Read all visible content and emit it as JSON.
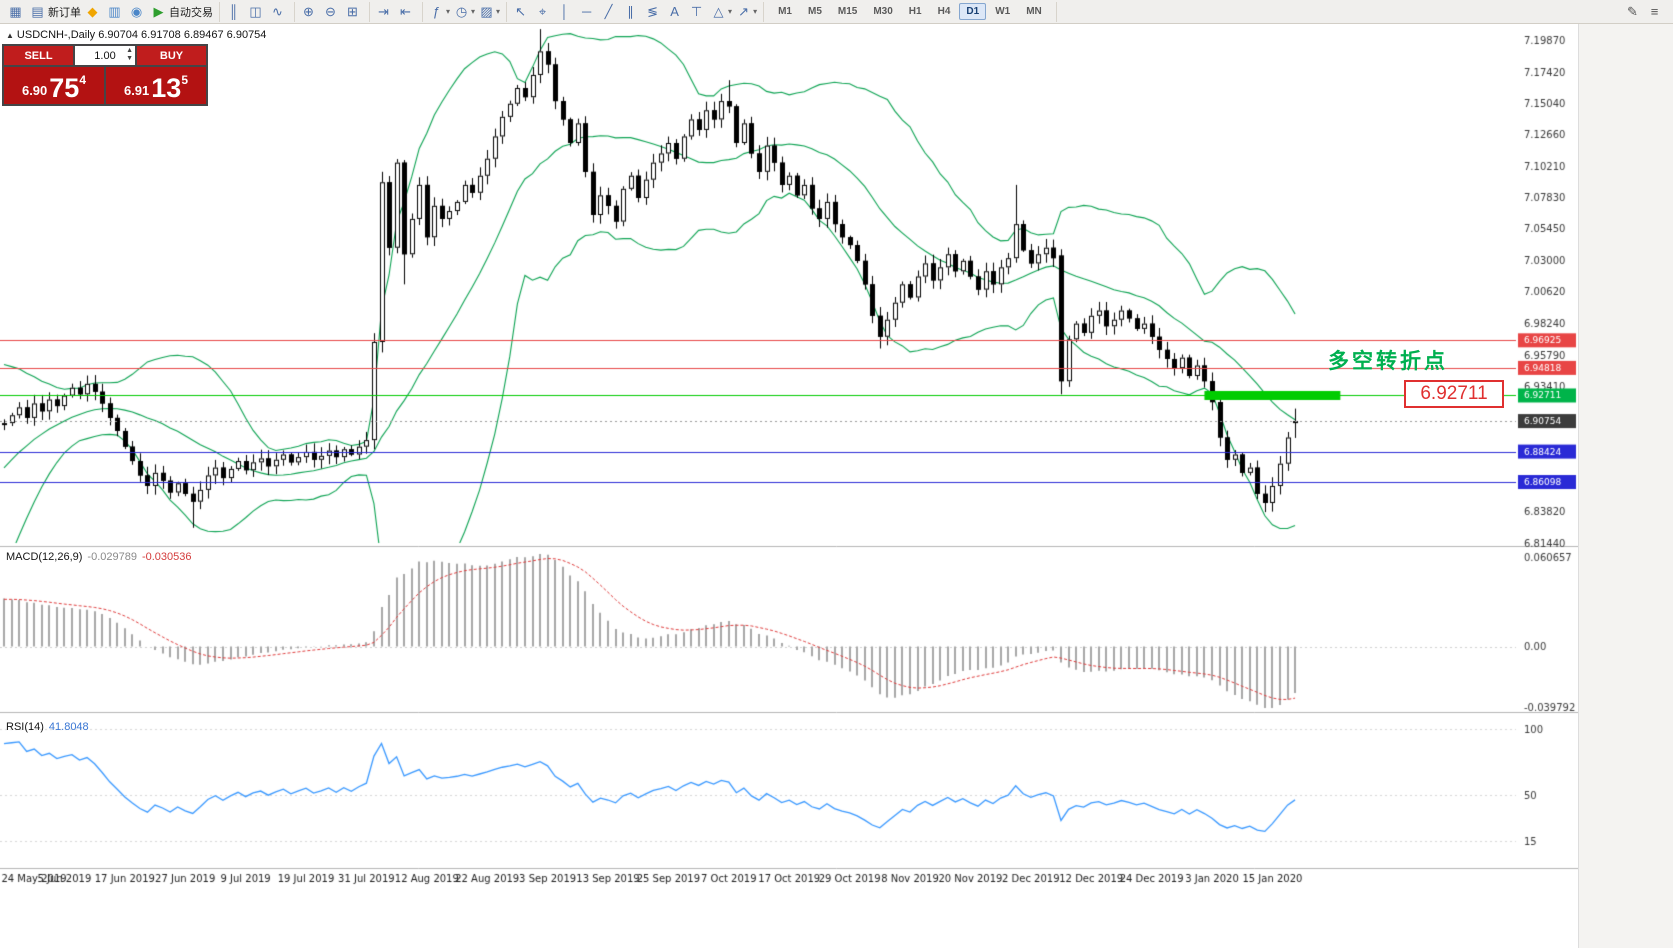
{
  "toolbar": {
    "groups": [
      {
        "name": "trade",
        "items": [
          {
            "name": "app-icon",
            "glyph": "▦",
            "interactable": false
          },
          {
            "name": "new-order-button",
            "glyph": "▤",
            "label": "新订单"
          },
          {
            "name": "mql5-community-icon",
            "glyph": "◆",
            "glyph_color": "#f0a500"
          },
          {
            "name": "depth-of-market-icon",
            "glyph": "▥",
            "glyph_color": "#4a86c8"
          },
          {
            "name": "economic-calendar-icon",
            "glyph": "◉",
            "glyph_color": "#4a86c8"
          },
          {
            "name": "auto-trading-button",
            "glyph": "▶",
            "glyph_color": "#2e9e2e",
            "label": "自动交易"
          }
        ]
      },
      {
        "name": "chart-types",
        "items": [
          {
            "name": "bar-chart-icon",
            "glyph": "║"
          },
          {
            "name": "candlestick-chart-icon",
            "glyph": "◫"
          },
          {
            "name": "line-chart-icon",
            "glyph": "∿"
          }
        ]
      },
      {
        "name": "zoom",
        "items": [
          {
            "name": "zoom-in-icon",
            "glyph": "⊕"
          },
          {
            "name": "zoom-out-icon",
            "glyph": "⊖"
          },
          {
            "name": "grid-icon",
            "glyph": "⊞"
          }
        ]
      },
      {
        "name": "scroll",
        "items": [
          {
            "name": "auto-scroll-icon",
            "glyph": "⇥"
          },
          {
            "name": "chart-shift-icon",
            "glyph": "⇤"
          }
        ]
      },
      {
        "name": "objects",
        "items": [
          {
            "name": "indicators-icon",
            "glyph": "ƒ",
            "dropdown": true
          },
          {
            "name": "periods-icon",
            "glyph": "◷",
            "dropdown": true
          },
          {
            "name": "templates-icon",
            "glyph": "▨",
            "dropdown": true
          }
        ]
      },
      {
        "name": "line-studies",
        "items": [
          {
            "name": "cursor-icon",
            "glyph": "↖"
          },
          {
            "name": "crosshair-icon",
            "glyph": "⌖"
          },
          {
            "name": "vertical-line-icon",
            "glyph": "│"
          },
          {
            "name": "horizontal-line-icon",
            "glyph": "─"
          },
          {
            "name": "trendline-icon",
            "glyph": "╱"
          },
          {
            "name": "channel-icon",
            "glyph": "∥"
          },
          {
            "name": "fibonacci-icon",
            "glyph": "≶"
          },
          {
            "name": "text-icon",
            "glyph": "A"
          },
          {
            "name": "label-icon",
            "glyph": "⊤"
          },
          {
            "name": "shapes-icon",
            "glyph": "△",
            "dropdown": true
          },
          {
            "name": "arrows-icon",
            "glyph": "↗",
            "dropdown": true
          }
        ]
      }
    ],
    "timeframes": {
      "items": [
        "M1",
        "M5",
        "M15",
        "M30",
        "H1",
        "H4",
        "D1",
        "W1",
        "MN"
      ],
      "active": "D1"
    },
    "right_items": [
      {
        "name": "quick-edit-icon",
        "glyph": "✎"
      },
      {
        "name": "menu-icon",
        "glyph": "≡"
      }
    ]
  },
  "chart": {
    "collapse_marker": "▲",
    "title": "USDCNH-,Daily 6.90704 6.91708 6.89467 6.90754",
    "annotation": {
      "text": "多空转折点",
      "color": "#00b050",
      "price": 6.956
    },
    "price_callout": {
      "text": "6.92711",
      "color": "#e03030",
      "price": 6.92711
    }
  },
  "quote_panel": {
    "sell_label": "SELL",
    "buy_label": "BUY",
    "volume": "1.00",
    "spin_up": "▲",
    "spin_down": "▼",
    "sell_price": {
      "head": "6.90",
      "big": "75",
      "sup": "4"
    },
    "buy_price": {
      "head": "6.91",
      "big": "13",
      "sup": "5"
    }
  },
  "chart_data": {
    "type": "candlestick",
    "symbol": "USDCNH-",
    "timeframe": "Daily",
    "last_ohlc": {
      "open": 6.90704,
      "high": 6.91708,
      "low": 6.89467,
      "close": 6.90754
    },
    "warmup_closes": [
      6.782,
      6.79,
      6.8,
      6.812,
      6.822,
      6.835,
      6.846,
      6.858,
      6.866,
      6.876,
      6.885,
      6.894,
      6.9,
      6.905,
      6.908,
      6.903,
      6.909,
      6.905,
      6.91,
      6.905
    ],
    "closes": [
      6.906,
      6.912,
      6.918,
      6.91,
      6.921,
      6.915,
      6.924,
      6.919,
      6.927,
      6.933,
      6.928,
      6.936,
      6.93,
      6.921,
      6.91,
      6.9,
      6.888,
      6.877,
      6.866,
      6.858,
      6.868,
      6.862,
      6.853,
      6.86,
      6.852,
      6.846,
      6.855,
      6.866,
      6.872,
      6.864,
      6.871,
      6.877,
      6.87,
      6.876,
      6.879,
      6.873,
      6.878,
      6.882,
      6.876,
      6.88,
      6.884,
      6.878,
      6.881,
      6.885,
      6.88,
      6.886,
      6.882,
      6.888,
      6.893,
      6.968,
      7.09,
      7.04,
      7.105,
      7.035,
      7.062,
      7.088,
      7.048,
      7.072,
      7.062,
      7.068,
      7.075,
      7.088,
      7.082,
      7.095,
      7.108,
      7.125,
      7.14,
      7.15,
      7.162,
      7.155,
      7.172,
      7.19,
      7.18,
      7.152,
      7.138,
      7.12,
      7.135,
      7.098,
      7.065,
      7.08,
      7.072,
      7.06,
      7.085,
      7.095,
      7.078,
      7.092,
      7.105,
      7.112,
      7.12,
      7.108,
      7.125,
      7.138,
      7.13,
      7.145,
      7.138,
      7.152,
      7.148,
      7.12,
      7.135,
      7.112,
      7.098,
      7.118,
      7.105,
      7.088,
      7.095,
      7.08,
      7.088,
      7.07,
      7.062,
      7.075,
      7.058,
      7.048,
      7.042,
      7.03,
      7.012,
      6.988,
      6.972,
      6.985,
      6.998,
      7.012,
      7.002,
      7.018,
      7.028,
      7.015,
      7.025,
      7.035,
      7.022,
      7.03,
      7.018,
      7.008,
      7.022,
      7.012,
      7.025,
      7.032,
      7.058,
      7.038,
      7.028,
      7.035,
      7.04,
      7.032,
      6.938,
      6.97,
      6.982,
      6.975,
      6.988,
      6.992,
      6.98,
      6.985,
      6.992,
      6.986,
      6.978,
      6.982,
      6.972,
      6.962,
      6.955,
      6.948,
      6.956,
      6.942,
      6.95,
      6.938,
      6.922,
      6.895,
      6.878,
      6.882,
      6.868,
      6.872,
      6.852,
      6.845,
      6.858,
      6.875,
      6.895,
      6.90754
    ],
    "overrides": {
      "25": {
        "l": 6.826
      },
      "49": {
        "l": 6.886
      },
      "50": {
        "h": 7.098,
        "l": 6.96
      },
      "53": {
        "l": 7.012
      },
      "71": {
        "h": 7.207
      },
      "96": {
        "h": 7.168
      },
      "116": {
        "l": 6.963
      },
      "134": {
        "h": 7.088
      },
      "140": {
        "o": 7.034,
        "l": 6.928
      },
      "167": {
        "l": 6.838
      },
      "171": {
        "o": 6.90704,
        "h": 6.91708,
        "l": 6.89467,
        "c": 6.90754
      }
    },
    "label_every_n_candles": 8,
    "date_labels": [
      "24 May 2019",
      "5 Jun 2019",
      "17 Jun 2019",
      "27 Jun 2019",
      "9 Jul 2019",
      "19 Jul 2019",
      "31 Jul 2019",
      "12 Aug 2019",
      "22 Aug 2019",
      "3 Sep 2019",
      "13 Sep 2019",
      "25 Sep 2019",
      "7 Oct 2019",
      "17 Oct 2019",
      "29 Oct 2019",
      "8 Nov 2019",
      "20 Nov 2019",
      "2 Dec 2019",
      "12 Dec 2019",
      "24 Dec 2019",
      "3 Jan 2020",
      "15 Jan 2020"
    ],
    "price_axis_labels": [
      "7.19870",
      "7.17420",
      "7.15040",
      "7.12660",
      "7.10210",
      "7.07830",
      "7.05450",
      "7.03000",
      "7.00620",
      "6.98240",
      "6.95790",
      "6.93410",
      "6.83820",
      "6.81440"
    ],
    "axis_tags": [
      {
        "text": "6.96925",
        "price": 6.96925,
        "color": "#e84545"
      },
      {
        "text": "6.94818",
        "price": 6.94818,
        "color": "#e84545"
      },
      {
        "text": "6.92711",
        "price": 6.92711,
        "color": "#00b44a"
      },
      {
        "text": "6.90754",
        "price": 6.90754,
        "color": "#3c3c3c"
      },
      {
        "text": "6.88424",
        "price": 6.88424,
        "color": "#2a2ad6"
      },
      {
        "text": "6.86098",
        "price": 6.86098,
        "color": "#2a2ad6"
      }
    ],
    "hlines": [
      {
        "price": 6.96925,
        "color": "#e84545"
      },
      {
        "price": 6.94818,
        "color": "#e84545"
      },
      {
        "price": 6.92711,
        "color": "#00cc00"
      },
      {
        "price": 6.88424,
        "color": "#2a2ad6"
      },
      {
        "price": 6.86098,
        "color": "#2a2ad6"
      }
    ],
    "current_price": 6.90754,
    "support_zone_bar": {
      "price": 6.92711,
      "from_index": 159,
      "to_index": 177,
      "thickness": 9,
      "color": "#00cc00"
    },
    "indicators": {
      "bollinger": {
        "period": 20,
        "deviation": 2,
        "color": "#0ca352"
      },
      "macd": {
        "name": "MACD(12,26,9)",
        "fast": 12,
        "slow": 26,
        "signal": 9,
        "value_main": "-0.029789",
        "value_signal": "-0.030536",
        "axis_labels": [
          {
            "text": "0.060657",
            "pos": "max"
          },
          {
            "text": "0.00",
            "pos": "zero"
          },
          {
            "text": "-0.039792",
            "pos": "min"
          }
        ],
        "hist_color": "#a8a8a8",
        "signal_color": "#e03c3c"
      },
      "rsi": {
        "name": "RSI(14)",
        "period": 14,
        "value": "41.8048",
        "axis_labels": [
          {
            "text": "100",
            "value": 100
          },
          {
            "text": "50",
            "value": 50
          },
          {
            "text": "15",
            "value": 15
          }
        ],
        "color": "#3a99ff"
      }
    },
    "colors": {
      "candle_up": "#ffffff",
      "candle_down": "#000000",
      "candle_border": "#000000",
      "current_price_line": "#9a9a9a",
      "axis_text": "#3c3c3c",
      "date_text": "#1c1c1c",
      "separator": "#b5b5b5"
    }
  }
}
